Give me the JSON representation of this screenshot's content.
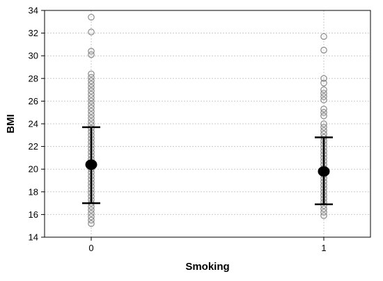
{
  "chart_data": {
    "type": "scatter",
    "title": "",
    "xlabel": "Smoking",
    "ylabel": "BMI",
    "categories": [
      "0",
      "1"
    ],
    "ylim": [
      14,
      34
    ],
    "yticks": [
      14,
      16,
      18,
      20,
      22,
      24,
      26,
      28,
      30,
      32,
      34
    ],
    "grid": true,
    "groups": [
      {
        "category": "0",
        "mean": 20.4,
        "lower": 17.0,
        "upper": 23.7,
        "points": [
          33.4,
          32.1,
          30.4,
          30.1,
          28.4,
          28.1,
          27.8,
          27.5,
          27.2,
          26.9,
          26.6,
          26.3,
          26.0,
          25.7,
          25.4,
          25.1,
          24.8,
          24.5,
          24.2,
          23.9,
          23.6,
          23.3,
          23.0,
          22.7,
          22.4,
          22.1,
          21.8,
          21.5,
          21.2,
          20.9,
          20.6,
          20.3,
          20.0,
          19.7,
          19.4,
          19.1,
          18.8,
          18.5,
          18.2,
          17.9,
          17.6,
          17.3,
          17.0,
          16.7,
          16.4,
          16.1,
          15.8,
          15.5,
          15.2
        ]
      },
      {
        "category": "1",
        "mean": 19.8,
        "lower": 16.9,
        "upper": 22.8,
        "points": [
          31.7,
          30.5,
          28.0,
          27.6,
          27.0,
          26.7,
          26.4,
          26.1,
          25.3,
          25.0,
          24.7,
          24.0,
          23.7,
          23.4,
          23.1,
          22.8,
          22.5,
          22.2,
          21.9,
          21.6,
          21.3,
          21.0,
          20.7,
          20.4,
          20.1,
          19.8,
          19.5,
          19.2,
          18.9,
          18.6,
          18.3,
          18.0,
          17.7,
          17.4,
          17.1,
          16.8,
          16.5,
          16.2,
          15.9
        ]
      }
    ]
  }
}
